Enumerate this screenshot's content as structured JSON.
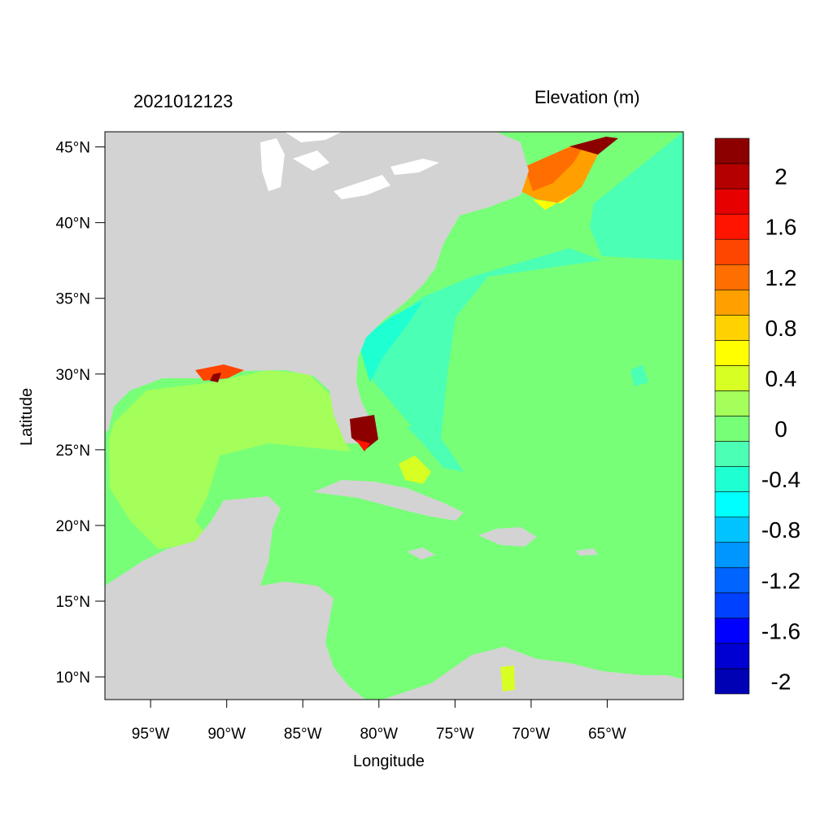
{
  "header": {
    "timestamp": "2021012123",
    "variable": "Elevation (m)"
  },
  "axes": {
    "xlabel": "Longitude",
    "ylabel": "Latitude",
    "lon_range": [
      -98,
      -60
    ],
    "lat_range": [
      8.5,
      46
    ],
    "lon_ticks": [
      {
        "value": -95,
        "label": "95°W"
      },
      {
        "value": -90,
        "label": "90°W"
      },
      {
        "value": -85,
        "label": "85°W"
      },
      {
        "value": -80,
        "label": "80°W"
      },
      {
        "value": -75,
        "label": "75°W"
      },
      {
        "value": -70,
        "label": "70°W"
      },
      {
        "value": -65,
        "label": "65°W"
      }
    ],
    "lat_ticks": [
      {
        "value": 45,
        "label": "45°N"
      },
      {
        "value": 40,
        "label": "40°N"
      },
      {
        "value": 35,
        "label": "35°N"
      },
      {
        "value": 30,
        "label": "30°N"
      },
      {
        "value": 25,
        "label": "25°N"
      },
      {
        "value": 20,
        "label": "20°N"
      },
      {
        "value": 15,
        "label": "15°N"
      },
      {
        "value": 10,
        "label": "10°N"
      }
    ]
  },
  "colorbar": {
    "colors": [
      "#0000b4",
      "#0000d2",
      "#0000ff",
      "#0041ff",
      "#0064ff",
      "#0096ff",
      "#00c3ff",
      "#00ffff",
      "#1effd2",
      "#4bffb4",
      "#78ff78",
      "#a5ff5a",
      "#d7ff23",
      "#ffff00",
      "#ffd200",
      "#ffa000",
      "#ff6e00",
      "#ff4600",
      "#ff1400",
      "#e60000",
      "#b40000",
      "#8c0000"
    ],
    "labels": [
      "-2",
      "-1.6",
      "-1.2",
      "-0.8",
      "-0.4",
      "0",
      "0.4",
      "0.8",
      "1.2",
      "1.6",
      "2"
    ]
  },
  "colors": {
    "land": "#d3d3d3",
    "ocean_zero": "#78ff78",
    "gulf": "#a5ff5a",
    "neg_shelf": "#4bffb4",
    "neg_coast": "#1effd2",
    "surge_high": "#8c0000",
    "surge_orange": "#ff6e00"
  }
}
